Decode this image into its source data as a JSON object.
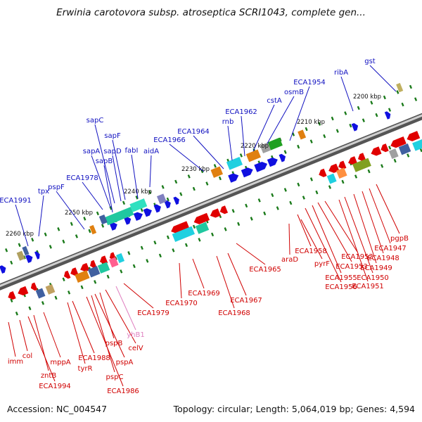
{
  "title": "Erwinia carotovora subsp. atroseptica SCRI1043, complete gen...",
  "footer": {
    "accession": "Accession: NC_004547",
    "topology": "Topology: circular; Length: 5,064,019 bp; Genes: 4,594"
  },
  "colors": {
    "top_labels": "#1010c0",
    "bottom_labels": "#d00000",
    "pink_label": "#e080c0",
    "axis": "#888888"
  },
  "ticks": [
    {
      "label": "2200 kbp"
    },
    {
      "label": "2210 kbp"
    },
    {
      "label": "2220 kbp"
    },
    {
      "label": "2230 kbp"
    },
    {
      "label": "2240 kbp"
    },
    {
      "label": "2250 kbp"
    },
    {
      "label": "2260 kbp"
    }
  ],
  "top_labels": [
    {
      "text": "gst"
    },
    {
      "text": "ribA"
    },
    {
      "text": "ECA1954"
    },
    {
      "text": "osmB"
    },
    {
      "text": "cstA"
    },
    {
      "text": "ECA1962"
    },
    {
      "text": "rnb"
    },
    {
      "text": "ECA1964"
    },
    {
      "text": "ECA1966"
    },
    {
      "text": "aidA"
    },
    {
      "text": "fabI"
    },
    {
      "text": "sapF"
    },
    {
      "text": "sapC"
    },
    {
      "text": "sapD"
    },
    {
      "text": "sapA"
    },
    {
      "text": "sapB"
    },
    {
      "text": "ECA1978"
    },
    {
      "text": "pspF"
    },
    {
      "text": "tpx"
    },
    {
      "text": "ECA1991"
    }
  ],
  "bottom_labels": [
    {
      "text": "pgpB"
    },
    {
      "text": "ECA1947"
    },
    {
      "text": "ECA1948"
    },
    {
      "text": "ECA1949"
    },
    {
      "text": "ECA1950"
    },
    {
      "text": "ECA1951"
    },
    {
      "text": "ECA1952"
    },
    {
      "text": "ECA1953"
    },
    {
      "text": "ECA1955"
    },
    {
      "text": "ECA1956"
    },
    {
      "text": "ECA1958"
    },
    {
      "text": "pyrF"
    },
    {
      "text": "araD"
    },
    {
      "text": "ECA1965"
    },
    {
      "text": "ECA1967"
    },
    {
      "text": "ECA1968"
    },
    {
      "text": "ECA1969"
    },
    {
      "text": "ECA1970"
    },
    {
      "text": "ECA1979"
    },
    {
      "text": "yhB1"
    },
    {
      "text": "celV"
    },
    {
      "text": "pspB"
    },
    {
      "text": "pspA"
    },
    {
      "text": "pspC"
    },
    {
      "text": "ECA1986"
    },
    {
      "text": "ECA1988"
    },
    {
      "text": "tyrR"
    },
    {
      "text": "mppA"
    },
    {
      "text": "zntB"
    },
    {
      "text": "ECA1994"
    },
    {
      "text": "col"
    },
    {
      "text": "imm"
    }
  ]
}
